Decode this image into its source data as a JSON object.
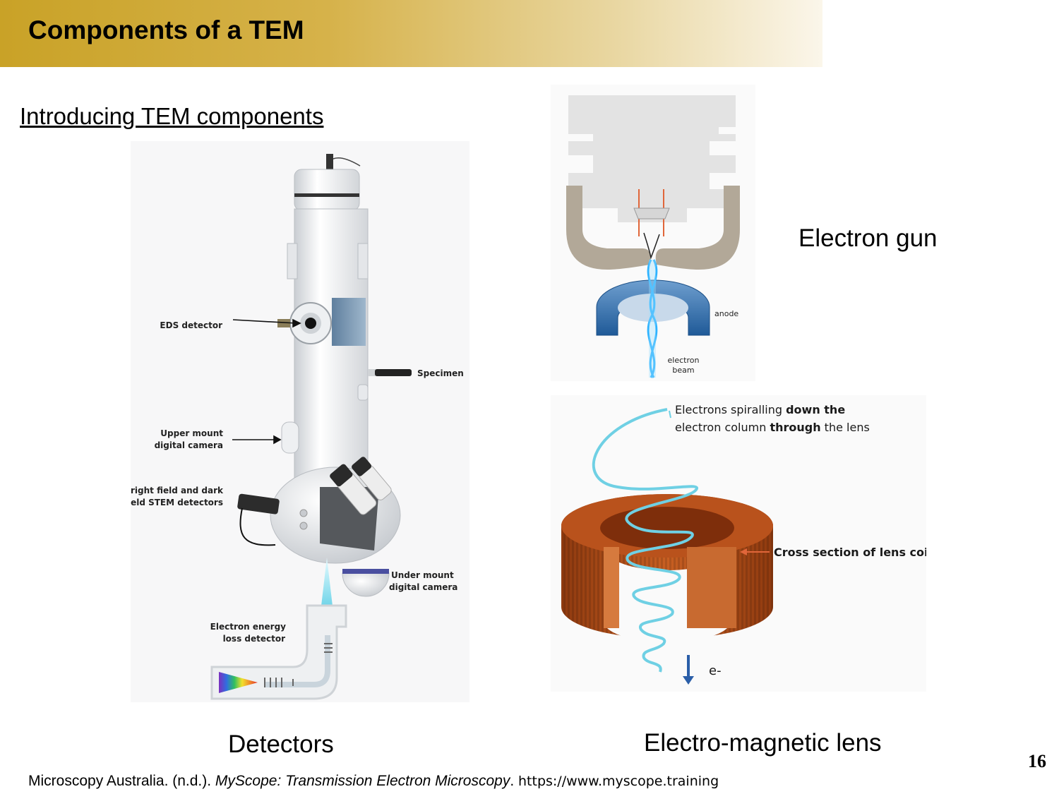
{
  "slide": {
    "title": "Components of a TEM",
    "subtitle": "Introducing TEM components",
    "page_number": "16"
  },
  "detectors_figure": {
    "caption": "Detectors",
    "labels": {
      "eds": "EDS detector",
      "specimen": "Specimen",
      "upper1": "Upper mount",
      "upper2": "digital camera",
      "stem1": "Bright field and dark",
      "stem2": "field STEM detectors",
      "under1": "Under mount",
      "under2": "digital camera",
      "eels1": "Electron energy",
      "eels2": "loss detector"
    }
  },
  "gun_figure": {
    "caption": "Electron gun",
    "labels": {
      "anode": "anode",
      "beam1": "electron",
      "beam2": "beam"
    }
  },
  "lens_figure": {
    "caption": "Electro-magnetic lens",
    "labels": {
      "spiral1_a": "Electrons spiralling ",
      "spiral1_b": "down the",
      "spiral2_a": "electron column ",
      "spiral2_b": "through",
      "spiral2_c": " the lens",
      "coil": "Cross section of lens coil",
      "electron": "e-"
    }
  },
  "citation": {
    "authors": "Microscopy Australia. (n.d.). ",
    "work": "MyScope: Transmission Electron Microscopy",
    "sep": ". ",
    "url": "https://www.myscope.training"
  }
}
